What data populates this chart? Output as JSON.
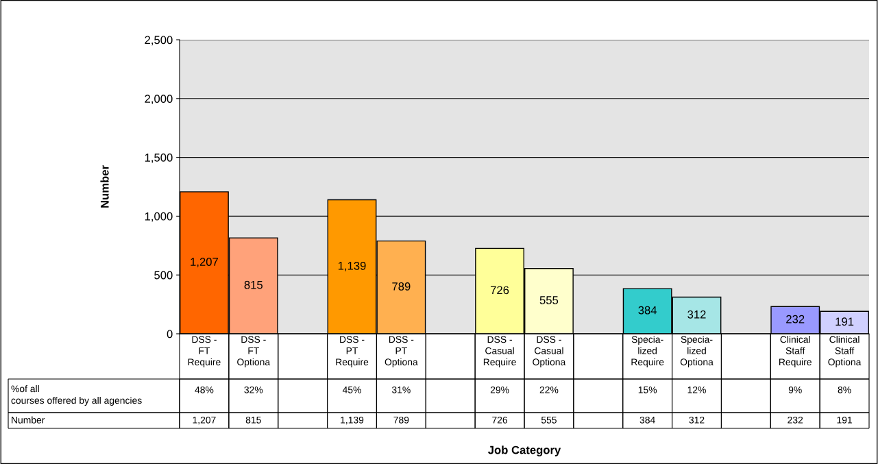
{
  "chart_data": {
    "type": "bar",
    "ylabel": "Number",
    "categories": [
      "DSS -\nFT\nRequire",
      "DSS -\nFT\nOptiona",
      null,
      "DSS -\nPT\nRequire",
      "DSS -\nPT\nOptiona",
      null,
      "DSS -\nCasual\nRequire",
      "DSS -\nCasual\nOptiona",
      null,
      "Specia-\nlized\nRequire",
      "Specia-\nlized\nOptiona",
      null,
      "Clinical\nStaff\nRequire",
      "Clinical\nStaff\nOptiona"
    ],
    "values": [
      1207,
      815,
      null,
      1139,
      789,
      null,
      726,
      555,
      null,
      384,
      312,
      null,
      232,
      191
    ],
    "value_labels": [
      "1,207",
      "815",
      null,
      "1,139",
      "789",
      null,
      "726",
      "555",
      null,
      "384",
      "312",
      null,
      "232",
      "191"
    ],
    "colors": [
      "#ff6600",
      "#ffa27a",
      null,
      "#ff9900",
      "#ffb050",
      null,
      "#ffff99",
      "#ffffcc",
      null,
      "#33cccc",
      "#a6e6e6",
      null,
      "#9999ff",
      "#d0d0ff"
    ],
    "ylim": [
      0,
      2500
    ],
    "yticks": [
      {
        "value": 0,
        "label": "0"
      },
      {
        "value": 500,
        "label": "500"
      },
      {
        "value": 1000,
        "label": "1,000"
      },
      {
        "value": 1500,
        "label": "1,500"
      },
      {
        "value": 2000,
        "label": "2,000"
      },
      {
        "value": 2500,
        "label": "2,500"
      }
    ],
    "grid": "y",
    "annotations": [
      "%of all\ncourses offered by all agencies",
      "Number",
      "Job Category",
      "48%",
      "32%",
      "45%",
      "31%",
      "29%",
      "22%",
      "15%",
      "12%",
      "9%",
      "8%"
    ]
  }
}
